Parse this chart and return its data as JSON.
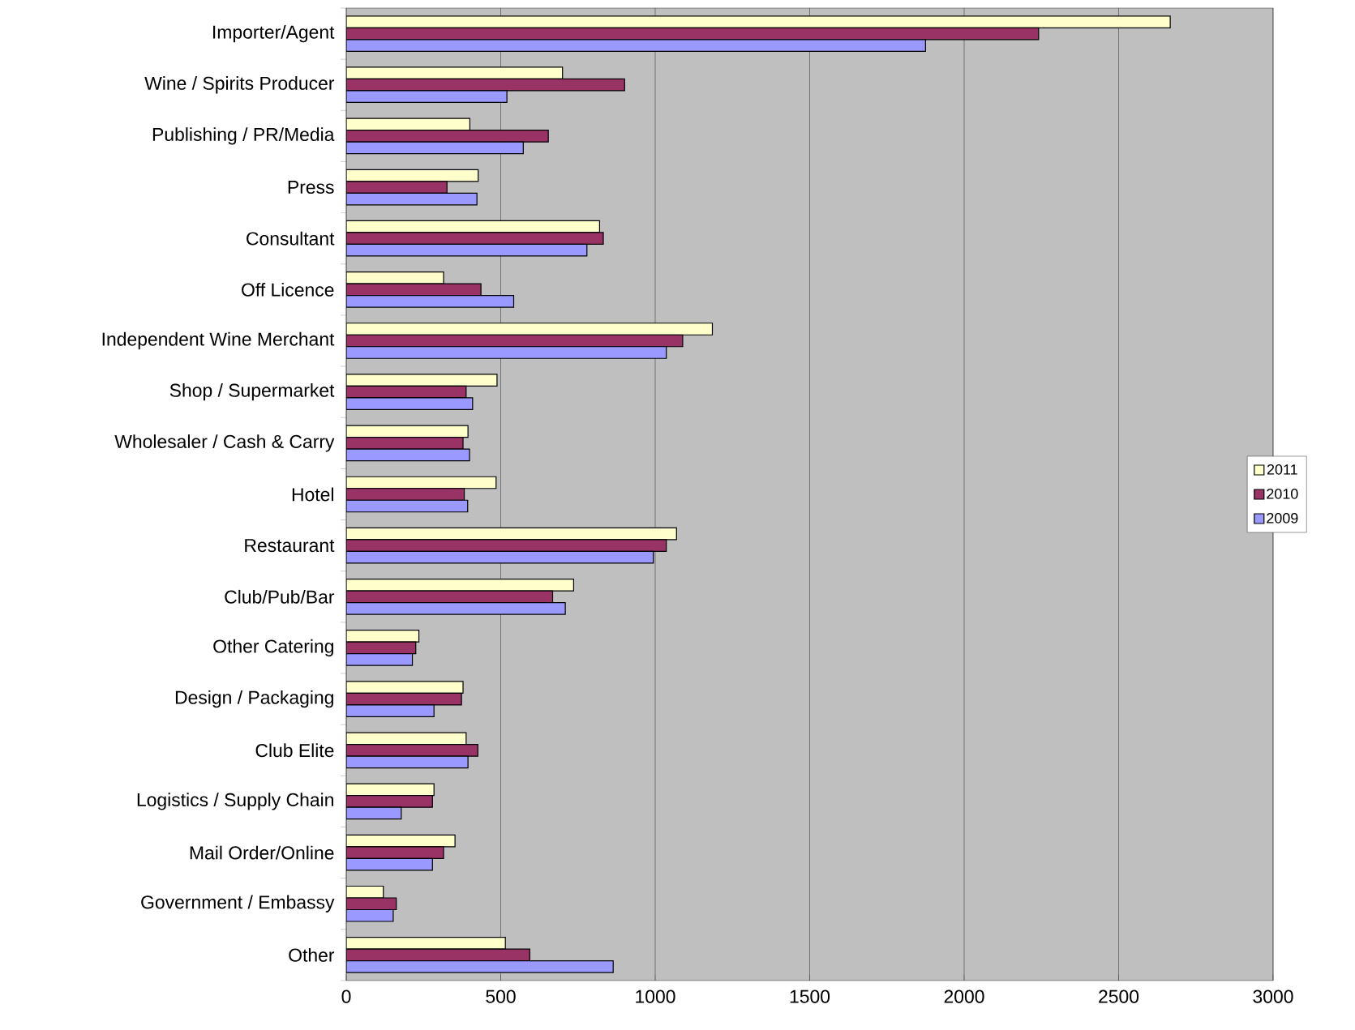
{
  "chart_data": {
    "type": "bar",
    "orientation": "horizontal",
    "categories": [
      "Importer/Agent",
      "Wine / Spirits Producer",
      "Publishing / PR/Media",
      "Press",
      "Consultant",
      "Off Licence",
      "Independent Wine Merchant",
      "Shop / Supermarket",
      "Wholesaler / Cash & Carry",
      "Hotel",
      "Restaurant",
      "Club/Pub/Bar",
      "Other Catering",
      "Design / Packaging",
      "Club Elite",
      "Logistics / Supply Chain",
      "Mail Order/Online",
      "Government / Embassy",
      "Other"
    ],
    "series": [
      {
        "name": "2011",
        "color": "#ffffcc",
        "values": [
          2667,
          700,
          400,
          427,
          820,
          315,
          1185,
          488,
          394,
          485,
          1069,
          736,
          235,
          378,
          388,
          284,
          352,
          120,
          515
        ]
      },
      {
        "name": "2010",
        "color": "#993366",
        "values": [
          2241,
          901,
          654,
          326,
          832,
          436,
          1089,
          388,
          378,
          382,
          1036,
          668,
          225,
          373,
          426,
          279,
          315,
          162,
          594
        ]
      },
      {
        "name": "2009",
        "color": "#9999ff",
        "values": [
          1875,
          520,
          573,
          423,
          779,
          542,
          1036,
          409,
          399,
          393,
          994,
          709,
          214,
          284,
          394,
          178,
          279,
          152,
          864
        ]
      }
    ],
    "xlim": [
      0,
      3000
    ],
    "xticks": [
      0,
      500,
      1000,
      1500,
      2000,
      2500,
      3000
    ],
    "grid": "x",
    "legend": "right"
  }
}
